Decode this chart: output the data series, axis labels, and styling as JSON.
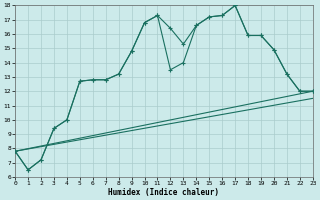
{
  "bg_color": "#cceaea",
  "grid_color": "#aacccc",
  "line_color": "#1a7060",
  "xlabel": "Humidex (Indice chaleur)",
  "xlim": [
    0,
    23
  ],
  "ylim": [
    6,
    18
  ],
  "xticks": [
    0,
    1,
    2,
    3,
    4,
    5,
    6,
    7,
    8,
    9,
    10,
    11,
    12,
    13,
    14,
    15,
    16,
    17,
    18,
    19,
    20,
    21,
    22,
    23
  ],
  "yticks": [
    6,
    7,
    8,
    9,
    10,
    11,
    12,
    13,
    14,
    15,
    16,
    17,
    18
  ],
  "line1_x": [
    0,
    1,
    2,
    3,
    4,
    5,
    6,
    7,
    8,
    9,
    10,
    11,
    12,
    13,
    14,
    15,
    16,
    17,
    18,
    19,
    20,
    21,
    22,
    23
  ],
  "line1_y": [
    7.8,
    6.5,
    7.2,
    9.4,
    10.0,
    12.7,
    12.8,
    12.8,
    13.2,
    14.8,
    16.8,
    17.3,
    16.4,
    15.3,
    16.6,
    17.2,
    17.3,
    18.0,
    15.9,
    15.9,
    14.9,
    13.2,
    12.0,
    12.0
  ],
  "line2_x": [
    0,
    1,
    2,
    3,
    4,
    5,
    6,
    7,
    8,
    9,
    10,
    11,
    12,
    13,
    14,
    15,
    16,
    17,
    18,
    19,
    20,
    21,
    22,
    23
  ],
  "line2_y": [
    7.8,
    6.5,
    7.2,
    9.4,
    10.0,
    12.7,
    12.8,
    12.8,
    13.2,
    14.8,
    16.8,
    17.3,
    13.5,
    14.0,
    16.6,
    17.2,
    17.3,
    18.0,
    15.9,
    15.9,
    14.9,
    13.2,
    12.0,
    12.0
  ],
  "line3_x": [
    0,
    23
  ],
  "line3_y": [
    7.8,
    12.0
  ],
  "line4_x": [
    0,
    23
  ],
  "line4_y": [
    7.8,
    11.5
  ],
  "xlabel_fontsize": 5.5,
  "tick_fontsize": 4.5,
  "linewidth": 0.8,
  "markersize": 3.0
}
